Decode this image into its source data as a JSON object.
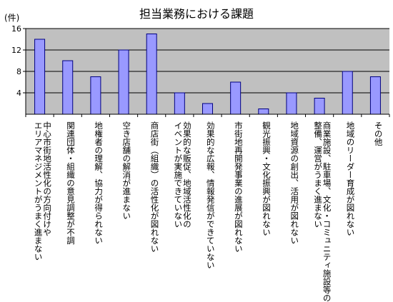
{
  "chart_data": {
    "type": "bar",
    "title": "担当業務における課題",
    "ylabel": "(件)",
    "ylim": [
      0,
      16
    ],
    "yticks": [
      4,
      8,
      12,
      16
    ],
    "grid": true,
    "colors": {
      "bar": "#9999ff",
      "bar_stroke": "#000080",
      "plot_bg": "#c0c0c0"
    },
    "categories": [
      "中心市街地活性化の方向付けやエリアマネジメントがうまく進まない",
      "関連団体・組織の意見調整が不調",
      "地権者の理解、協力が得られない",
      "空き店舗の解消が進まない",
      "商店街（組織）の活性化が図れない",
      "効果的な販促、地域活性化のイベントが実施できていない",
      "効果的な広報、情報発信ができていない",
      "市街地再開発事業の進展が図れない",
      "観光振興・文化振興が図れない",
      "地域資源の創出、活用が図れない",
      "商業施設、駐車場、文化・コミュニティ施設等の整備、運営がうまく進まない",
      "地域のリーダー育成が図れない",
      "その他"
    ],
    "label_lines": [
      [
        "中心市街地活性化の方向付けや",
        "エリアマネジメントがうまく進まない"
      ],
      [
        "関連団体・組織の意見調整が不調"
      ],
      [
        "地権者の理解、協力が得られない"
      ],
      [
        "空き店舗の解消が進まない"
      ],
      [
        "商店街（組織）の活性化が図れない"
      ],
      [
        "効果的な販促、地域活性化の",
        "イベントが実施できていない"
      ],
      [
        "効果的な広報、情報発信ができていない"
      ],
      [
        "市街地再開発事業の進展が図れない"
      ],
      [
        "観光振興・文化振興が図れない"
      ],
      [
        "地域資源の創出、活用が図れない"
      ],
      [
        "商業施設、駐車場、文化・コミュニティ施設等の",
        "整備、運営がうまく進まない"
      ],
      [
        "地域のリーダー育成が図れない"
      ],
      [
        "その他"
      ]
    ],
    "values": [
      14,
      10,
      7,
      12,
      15,
      4,
      2,
      6,
      1,
      4,
      3,
      8,
      7
    ]
  }
}
